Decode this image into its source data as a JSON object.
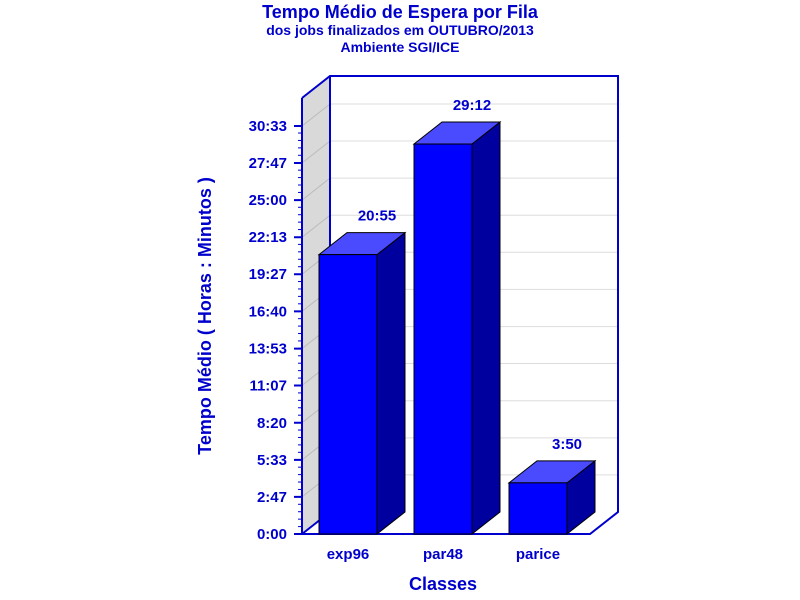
{
  "chart_data": {
    "type": "bar",
    "title": "Tempo Médio de Espera por Fila",
    "subtitle_lines": [
      "dos jobs finalizados em OUTUBRO/2013",
      "Ambiente SGI/ICE"
    ],
    "xlabel": "Classes",
    "ylabel": "Tempo Médio ( Horas : Minutos )",
    "categories": [
      "exp96",
      "par48",
      "parice"
    ],
    "values": [
      20.92,
      29.2,
      3.83
    ],
    "value_labels": [
      "20:55",
      "29:12",
      "3:50"
    ],
    "yticks": [
      0,
      2.78,
      5.55,
      8.33,
      11.12,
      13.88,
      16.67,
      19.45,
      22.22,
      25.0,
      27.78,
      30.55
    ],
    "ytick_labels": [
      "0:00",
      "2:47",
      "5:33",
      "8:20",
      "11:07",
      "13:53",
      "16:40",
      "19:27",
      "22:13",
      "25:00",
      "27:47",
      "30:33"
    ],
    "ylim": [
      0,
      30.55
    ],
    "grid": true,
    "three_d": true,
    "colors": {
      "text": "#0000cc",
      "bar_front": "#0000ff",
      "bar_top": "#4a4aff",
      "bar_side": "#00009e",
      "wall": "#d9d9d9",
      "frame": "#0000cc",
      "grid": "#dddddd"
    }
  }
}
